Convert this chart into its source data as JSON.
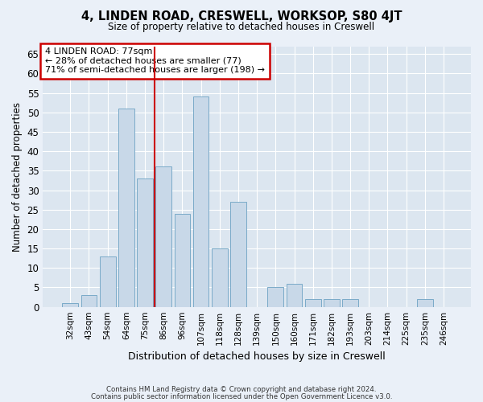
{
  "title": "4, LINDEN ROAD, CRESWELL, WORKSOP, S80 4JT",
  "subtitle": "Size of property relative to detached houses in Creswell",
  "xlabel": "Distribution of detached houses by size in Creswell",
  "ylabel": "Number of detached properties",
  "categories": [
    "32sqm",
    "43sqm",
    "54sqm",
    "64sqm",
    "75sqm",
    "86sqm",
    "96sqm",
    "107sqm",
    "118sqm",
    "128sqm",
    "139sqm",
    "150sqm",
    "160sqm",
    "171sqm",
    "182sqm",
    "193sqm",
    "203sqm",
    "214sqm",
    "225sqm",
    "235sqm",
    "246sqm"
  ],
  "values": [
    1,
    3,
    13,
    51,
    33,
    36,
    24,
    54,
    15,
    27,
    0,
    5,
    6,
    2,
    2,
    2,
    0,
    0,
    0,
    2,
    0
  ],
  "bar_color": "#c8d8e8",
  "bar_edge_color": "#7aaac8",
  "highlight_index": 4,
  "highlight_line_color": "#cc0000",
  "ylim": [
    0,
    67
  ],
  "yticks": [
    0,
    5,
    10,
    15,
    20,
    25,
    30,
    35,
    40,
    45,
    50,
    55,
    60,
    65
  ],
  "annotation_line1": "4 LINDEN ROAD: 77sqm",
  "annotation_line2": "← 28% of detached houses are smaller (77)",
  "annotation_line3": "71% of semi-detached houses are larger (198) →",
  "annotation_box_color": "#ffffff",
  "annotation_box_edge": "#cc0000",
  "footer_line1": "Contains HM Land Registry data © Crown copyright and database right 2024.",
  "footer_line2": "Contains public sector information licensed under the Open Government Licence v3.0.",
  "bg_color": "#eaf0f8",
  "plot_bg_color": "#dce6f0"
}
